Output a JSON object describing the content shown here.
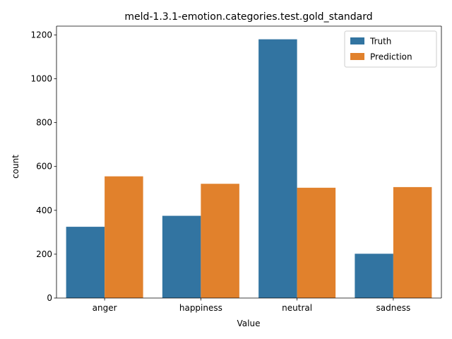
{
  "chart_data": {
    "type": "bar",
    "title": "meld-1.3.1-emotion.categories.test.gold_standard",
    "xlabel": "Value",
    "ylabel": "count",
    "categories": [
      "anger",
      "happiness",
      "neutral",
      "sadness"
    ],
    "series": [
      {
        "name": "Truth",
        "color": "#3274a1",
        "values": [
          325,
          375,
          1180,
          202
        ]
      },
      {
        "name": "Prediction",
        "color": "#e1812c",
        "values": [
          555,
          521,
          503,
          506
        ]
      }
    ],
    "ylim": [
      0,
      1240
    ],
    "yticks": [
      0,
      200,
      400,
      600,
      800,
      1000,
      1200
    ],
    "grid": false,
    "legend_position": "top-right"
  }
}
